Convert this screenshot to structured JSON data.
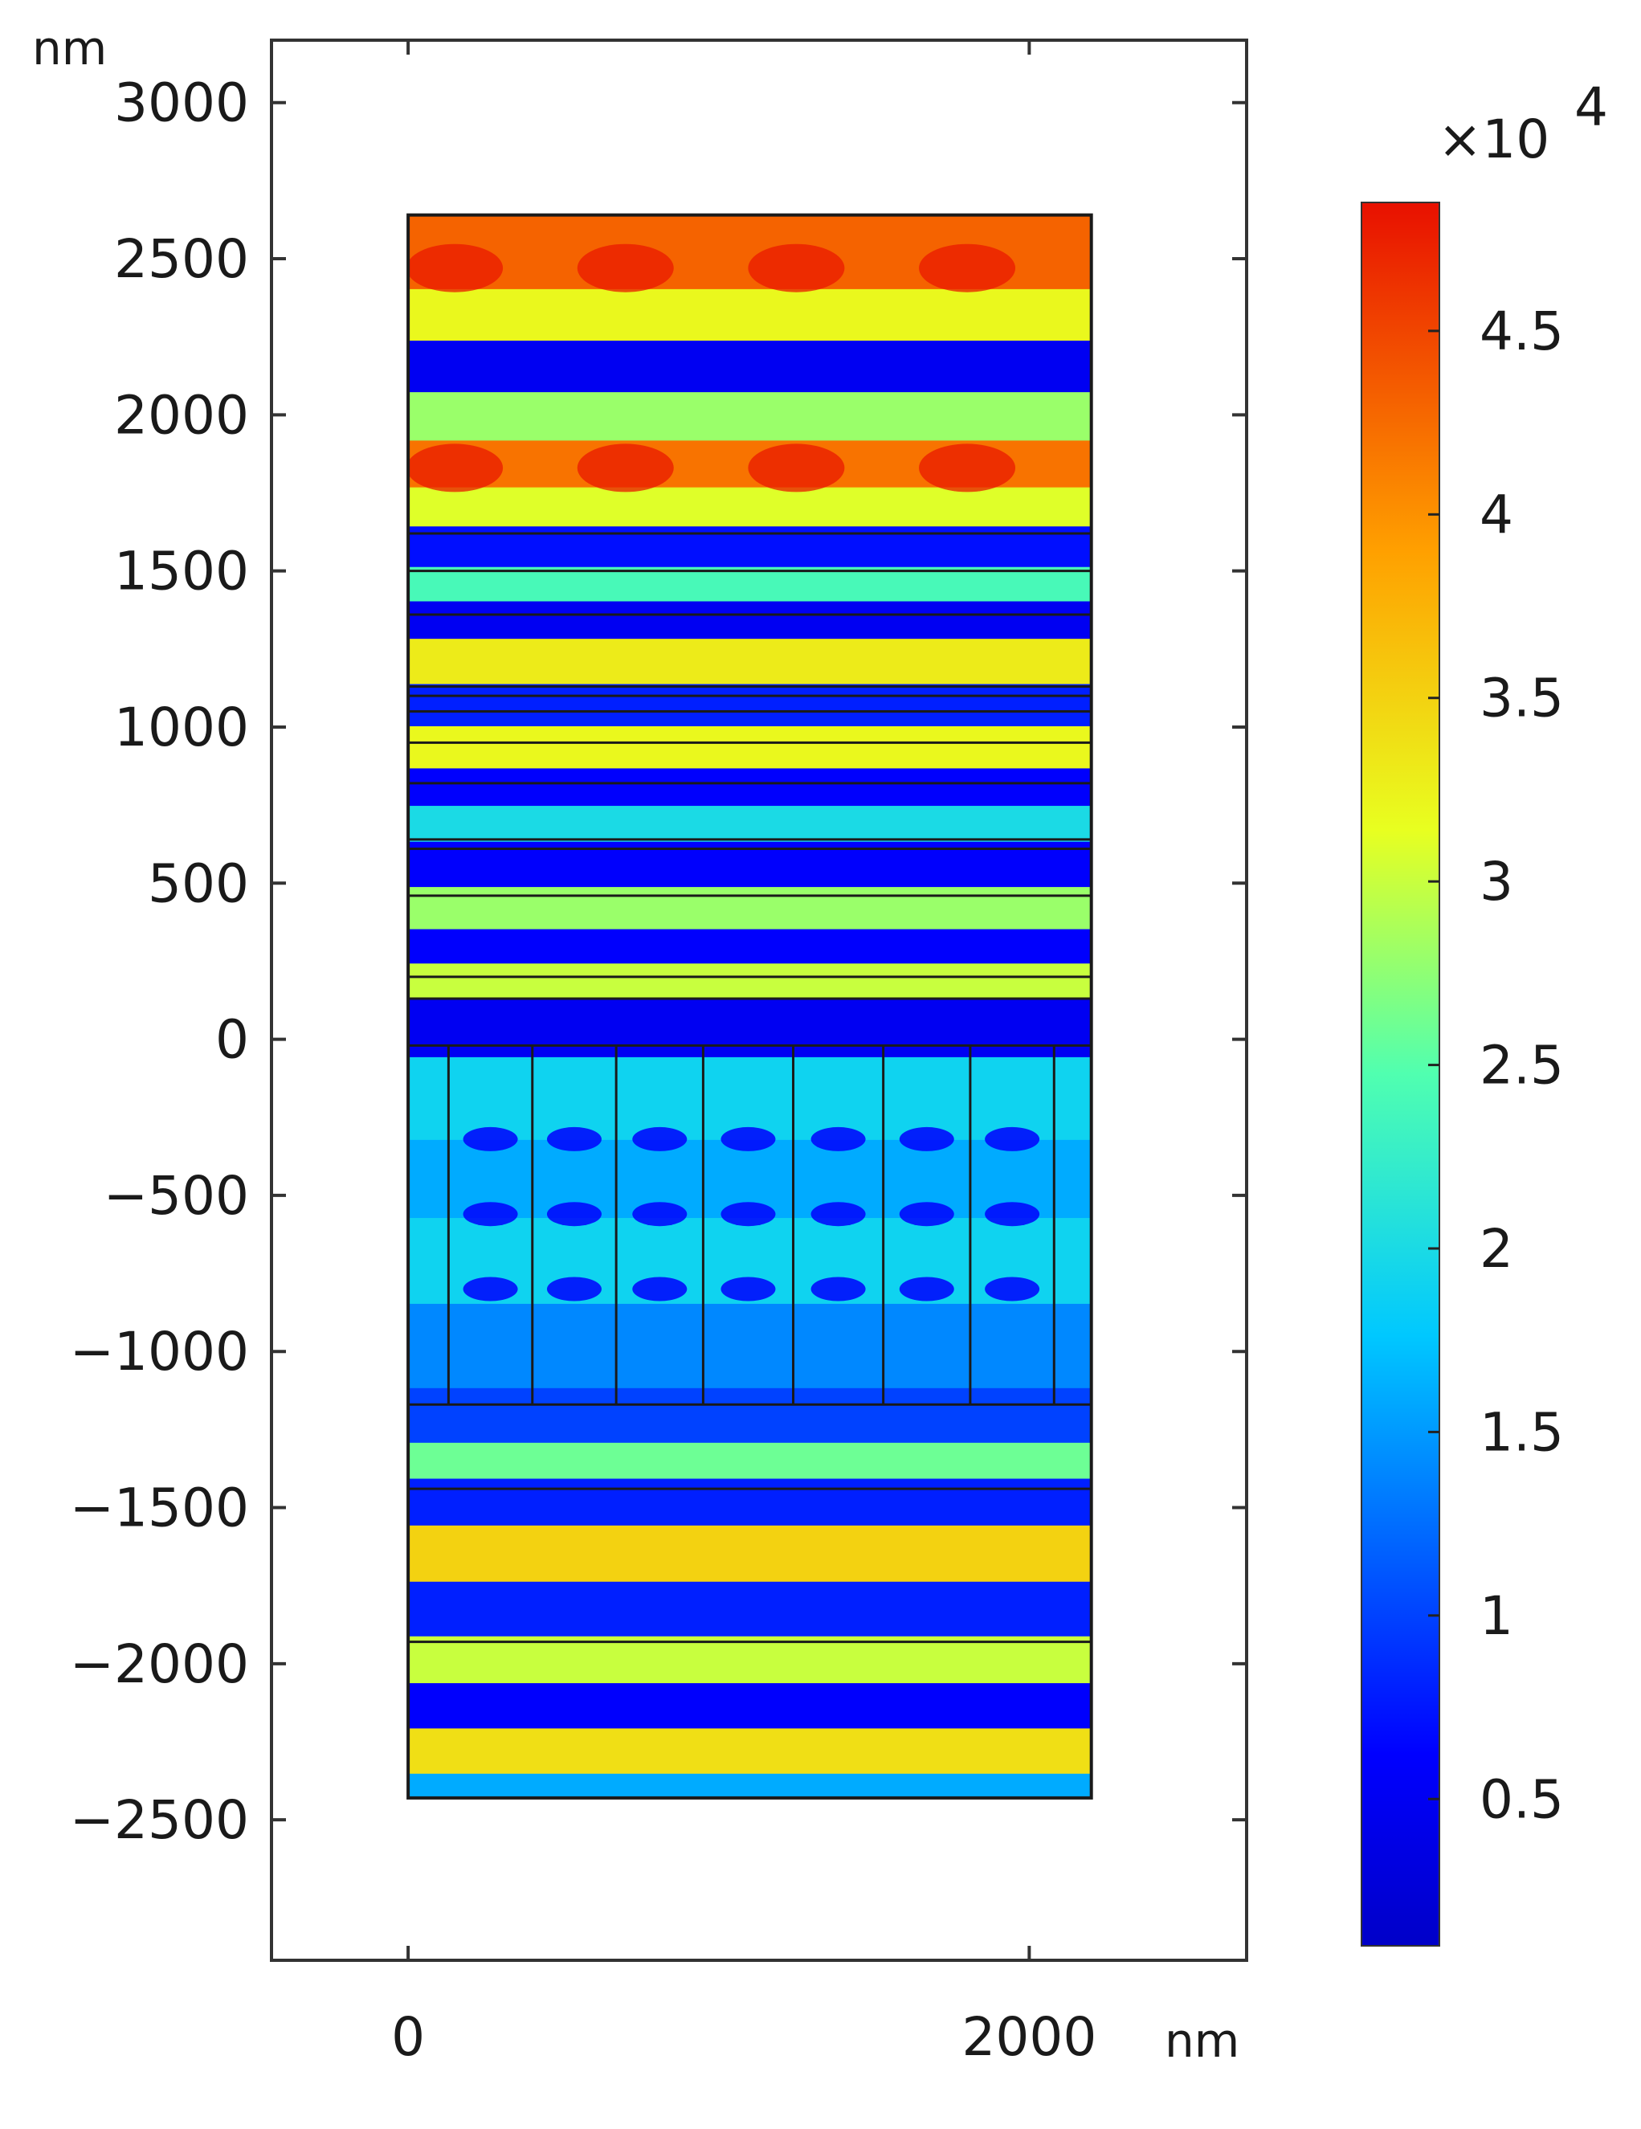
{
  "chart_data": {
    "type": "heatmap",
    "title": "",
    "xlabel": "nm",
    "ylabel": "nm",
    "xlim": [
      -440,
      2700
    ],
    "ylim": [
      -2950,
      3200
    ],
    "x_ticks": [
      0,
      2000
    ],
    "x_tick_labels": [
      "0",
      "2000"
    ],
    "y_ticks": [
      3000,
      2500,
      2000,
      1500,
      1000,
      500,
      0,
      -500,
      -1000,
      -1500,
      -2000,
      -2500
    ],
    "y_tick_labels": [
      "3000",
      "2500",
      "2000",
      "1500",
      "1000",
      "500",
      "0",
      "−500",
      "−1000",
      "−1500",
      "−2000",
      "−2500"
    ],
    "domain": {
      "x": [
        0,
        2200
      ],
      "y": [
        -2430,
        2640
      ]
    },
    "grating": {
      "y": [
        -1170,
        -20
      ],
      "line_x": [
        130,
        400,
        670,
        950,
        1240,
        1530,
        1810,
        2080
      ]
    },
    "layer_boundaries_y": [
      1620,
      1500,
      1360,
      1130,
      1100,
      1050,
      950,
      820,
      640,
      610,
      460,
      200,
      130,
      -20,
      -1170,
      -1440,
      -1930
    ],
    "field_bands": [
      {
        "y": 2470,
        "value": 43000
      },
      {
        "y": 2330,
        "value": 32000
      },
      {
        "y": 2140,
        "value": 5000
      },
      {
        "y": 2000,
        "value": 28000
      },
      {
        "y": 1830,
        "value": 42000
      },
      {
        "y": 1700,
        "value": 31000
      },
      {
        "y": 1580,
        "value": 7000
      },
      {
        "y": 1440,
        "value": 24000
      },
      {
        "y": 1360,
        "value": 5000
      },
      {
        "y": 1200,
        "value": 33000
      },
      {
        "y": 1070,
        "value": 8000
      },
      {
        "y": 930,
        "value": 32000
      },
      {
        "y": 800,
        "value": 6000
      },
      {
        "y": 690,
        "value": 20000
      },
      {
        "y": 570,
        "value": 6000
      },
      {
        "y": 400,
        "value": 28000
      },
      {
        "y": 300,
        "value": 6000
      },
      {
        "y": 180,
        "value": 30000
      },
      {
        "y": 80,
        "value": 5000
      },
      {
        "y": -200,
        "value": 19000
      },
      {
        "y": -450,
        "value": 16000
      },
      {
        "y": -700,
        "value": 19000
      },
      {
        "y": -1000,
        "value": 14000
      },
      {
        "y": -1240,
        "value": 10000
      },
      {
        "y": -1350,
        "value": 26000
      },
      {
        "y": -1470,
        "value": 8000
      },
      {
        "y": -1650,
        "value": 35000
      },
      {
        "y": -1830,
        "value": 8000
      },
      {
        "y": -2000,
        "value": 30000
      },
      {
        "y": -2130,
        "value": 6000
      },
      {
        "y": -2290,
        "value": 34000
      },
      {
        "y": -2420,
        "value": 16000
      }
    ],
    "colorbar": {
      "multiplier": "×10",
      "exponent": "4",
      "range": [
        1000,
        48500
      ],
      "ticks": [
        0.5,
        1,
        1.5,
        2,
        2.5,
        3,
        3.5,
        4,
        4.5
      ],
      "tick_labels": [
        "0.5",
        "1",
        "1.5",
        "2",
        "2.5",
        "3",
        "3.5",
        "4",
        "4.5"
      ],
      "colormap": "jet",
      "colors": [
        "#00007f",
        "#0000ff",
        "#007fff",
        "#00ffff",
        "#7fff7f",
        "#ffff00",
        "#ff7f00",
        "#ff0000",
        "#7f0000"
      ]
    }
  }
}
